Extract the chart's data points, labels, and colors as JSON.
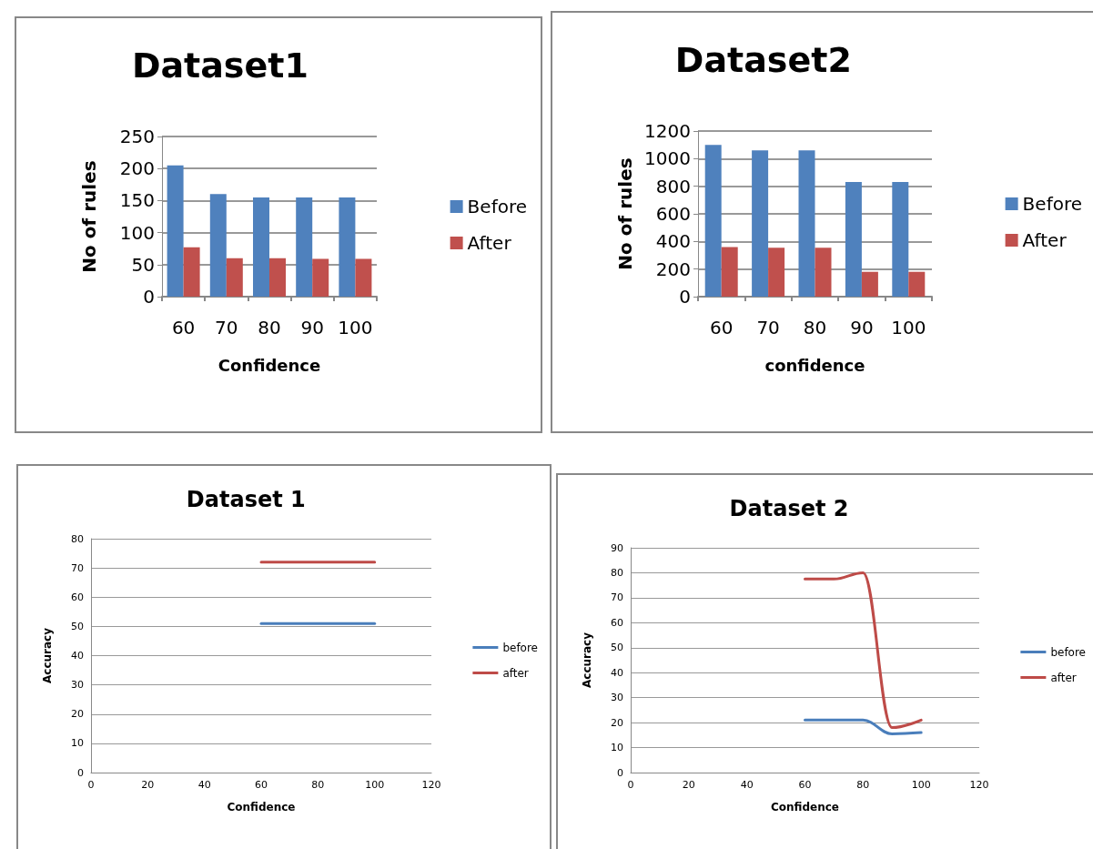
{
  "chart_data": [
    {
      "type": "bar",
      "title": "Dataset1",
      "xlabel": "Confidence",
      "ylabel": "No of rules",
      "categories": [
        "60",
        "70",
        "80",
        "90",
        "100"
      ],
      "series": [
        {
          "name": "Before",
          "color": "#4f81bd",
          "values": [
            205,
            160,
            155,
            155,
            155
          ]
        },
        {
          "name": "After",
          "color": "#c0504d",
          "values": [
            77,
            60,
            60,
            59,
            59
          ]
        }
      ],
      "ylim": [
        0,
        250
      ],
      "yticks": [
        0,
        50,
        100,
        150,
        200,
        250
      ],
      "grid": "y",
      "legend": "right"
    },
    {
      "type": "bar",
      "title": "Dataset2",
      "xlabel": "confidence",
      "ylabel": "No of rules",
      "categories": [
        "60",
        "70",
        "80",
        "90",
        "100"
      ],
      "series": [
        {
          "name": "Before",
          "color": "#4f81bd",
          "values": [
            1100,
            1060,
            1060,
            830,
            830
          ]
        },
        {
          "name": "After",
          "color": "#c0504d",
          "values": [
            360,
            355,
            355,
            180,
            180
          ]
        }
      ],
      "ylim": [
        0,
        1200
      ],
      "yticks": [
        0,
        200,
        400,
        600,
        800,
        1000,
        1200
      ],
      "grid": "y",
      "legend": "right"
    },
    {
      "type": "line",
      "title": "Dataset 1",
      "xlabel": "Confidence",
      "ylabel": "Accuracy",
      "x": [
        60,
        70,
        80,
        90,
        100
      ],
      "series": [
        {
          "name": "before",
          "color": "#4a7ebb",
          "values": [
            51,
            51,
            51,
            51,
            51
          ]
        },
        {
          "name": "after",
          "color": "#be4b48",
          "values": [
            72,
            72,
            72,
            72,
            72
          ]
        }
      ],
      "xlim": [
        0,
        120
      ],
      "xticks": [
        0,
        20,
        40,
        60,
        80,
        100,
        120
      ],
      "ylim": [
        0,
        80
      ],
      "yticks": [
        0,
        10,
        20,
        30,
        40,
        50,
        60,
        70,
        80
      ],
      "grid": "y",
      "legend": "right",
      "marker": "none",
      "line_style": "solid"
    },
    {
      "type": "line",
      "title": "Dataset 2",
      "xlabel": "Confidence",
      "ylabel": "Accuracy",
      "x": [
        60,
        70,
        80,
        90,
        100
      ],
      "series": [
        {
          "name": "before",
          "color": "#4a7ebb",
          "values": [
            21,
            21,
            21,
            15.5,
            16
          ]
        },
        {
          "name": "after",
          "color": "#be4b48",
          "values": [
            77.5,
            77.5,
            80,
            18,
            21
          ]
        }
      ],
      "xlim": [
        0,
        120
      ],
      "xticks": [
        0,
        20,
        40,
        60,
        80,
        100,
        120
      ],
      "ylim": [
        0,
        90
      ],
      "yticks": [
        0,
        10,
        20,
        30,
        40,
        50,
        60,
        70,
        80,
        90
      ],
      "grid": "y",
      "legend": "right",
      "marker": "none",
      "line_style": "solid"
    }
  ]
}
